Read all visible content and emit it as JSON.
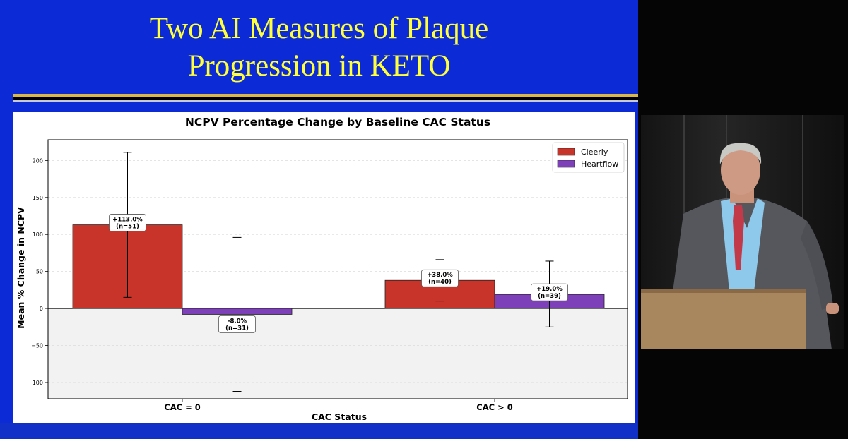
{
  "slide": {
    "title_line1": "Two AI Measures of Plaque",
    "title_line2": "Progression in KETO",
    "bg_color": "#0c2bd6",
    "title_color": "#ffff3c"
  },
  "chart_data": {
    "type": "bar",
    "title": "NCPV Percentage Change by Baseline CAC Status",
    "xlabel": "CAC Status",
    "ylabel": "Mean % Change in NCPV",
    "categories": [
      "CAC = 0",
      "CAC > 0"
    ],
    "ylim": [
      -122,
      228
    ],
    "yticks": [
      -100,
      -50,
      0,
      50,
      100,
      150,
      200
    ],
    "ytick_labels": [
      "−100",
      "−50",
      "0",
      "50",
      "100",
      "150",
      "200"
    ],
    "grid": true,
    "legend_position": "top-right",
    "series": [
      {
        "name": "Cleerly",
        "color": "#c8342a",
        "values": [
          113.0,
          38.0
        ],
        "error_low": [
          15,
          10
        ],
        "error_high": [
          211,
          66
        ],
        "labels": [
          [
            "+113.0%",
            "(n=51)"
          ],
          [
            "+38.0%",
            "(n=40)"
          ]
        ]
      },
      {
        "name": "Heartflow",
        "color": "#7e40b8",
        "values": [
          -8.0,
          19.0
        ],
        "error_low": [
          -112,
          -25
        ],
        "error_high": [
          96,
          64
        ],
        "labels": [
          [
            "-8.0%",
            "(n=31)"
          ],
          [
            "+19.0%",
            "(n=39)"
          ]
        ]
      }
    ]
  }
}
